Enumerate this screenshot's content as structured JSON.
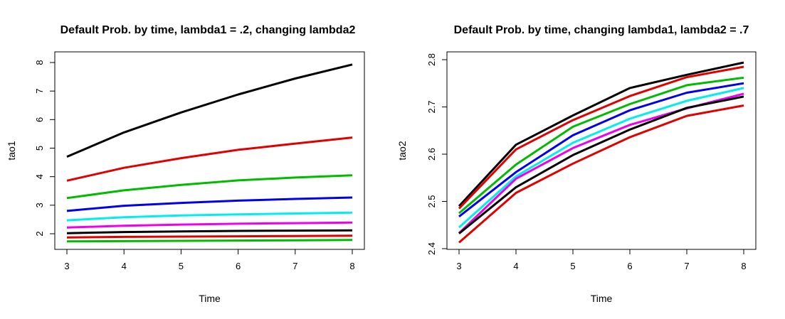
{
  "chart_data": [
    {
      "type": "line",
      "title": "Default Prob. by time, lambda1 = .2, changing lambda2",
      "xlabel": "Time",
      "ylabel": "tao1",
      "x": [
        3,
        4,
        5,
        6,
        7,
        8
      ],
      "xlim": [
        3,
        8
      ],
      "ylim": [
        1.7,
        8.0
      ],
      "xticks": [
        "3",
        "4",
        "5",
        "6",
        "7",
        "8"
      ],
      "yticks": [
        "2",
        "3",
        "4",
        "5",
        "6",
        "7",
        "8"
      ],
      "grid": false,
      "series": [
        {
          "color": "#000000",
          "values": [
            4.7,
            5.55,
            6.25,
            6.88,
            7.44,
            7.93
          ]
        },
        {
          "color": "#e00000",
          "values": [
            3.86,
            4.31,
            4.65,
            4.94,
            5.16,
            5.37
          ]
        },
        {
          "color": "#00bb00",
          "values": [
            3.25,
            3.52,
            3.71,
            3.87,
            3.97,
            4.05
          ]
        },
        {
          "color": "#0000ee",
          "values": [
            2.8,
            2.98,
            3.08,
            3.16,
            3.22,
            3.27
          ]
        },
        {
          "color": "#00eeee",
          "values": [
            2.47,
            2.58,
            2.64,
            2.68,
            2.71,
            2.74
          ]
        },
        {
          "color": "#ee00ee",
          "values": [
            2.22,
            2.28,
            2.32,
            2.35,
            2.37,
            2.39
          ]
        },
        {
          "color": "#000000",
          "values": [
            2.02,
            2.06,
            2.08,
            2.1,
            2.11,
            2.12
          ]
        },
        {
          "color": "#e00000",
          "values": [
            1.87,
            1.89,
            1.9,
            1.91,
            1.92,
            1.93
          ]
        },
        {
          "color": "#00bb00",
          "values": [
            1.73,
            1.74,
            1.75,
            1.76,
            1.77,
            1.78
          ]
        }
      ]
    },
    {
      "type": "line",
      "title": "Default Prob. by time, changing lambda1, lambda2 = .7",
      "xlabel": "Time",
      "ylabel": "tao2",
      "x": [
        3,
        4,
        5,
        6,
        7,
        8
      ],
      "xlim": [
        3,
        8
      ],
      "ylim": [
        2.4,
        2.8
      ],
      "xticks": [
        "3",
        "4",
        "5",
        "6",
        "7",
        "8"
      ],
      "yticks": [
        "2.4",
        "2.5",
        "2.6",
        "2.7",
        "2.8"
      ],
      "grid": false,
      "series": [
        {
          "color": "#000000",
          "values": [
            2.49,
            2.62,
            2.682,
            2.74,
            2.768,
            2.794
          ]
        },
        {
          "color": "#e00000",
          "values": [
            2.485,
            2.61,
            2.672,
            2.723,
            2.763,
            2.785
          ]
        },
        {
          "color": "#00bb00",
          "values": [
            2.475,
            2.578,
            2.658,
            2.706,
            2.746,
            2.762
          ]
        },
        {
          "color": "#0000ee",
          "values": [
            2.468,
            2.562,
            2.64,
            2.693,
            2.73,
            2.75
          ]
        },
        {
          "color": "#00eeee",
          "values": [
            2.445,
            2.553,
            2.624,
            2.675,
            2.713,
            2.74
          ]
        },
        {
          "color": "#ee00ee",
          "values": [
            2.433,
            2.548,
            2.613,
            2.662,
            2.697,
            2.728
          ]
        },
        {
          "color": "#000000",
          "values": [
            2.432,
            2.53,
            2.598,
            2.652,
            2.698,
            2.722
          ]
        },
        {
          "color": "#e00000",
          "values": [
            2.413,
            2.518,
            2.58,
            2.636,
            2.681,
            2.703
          ]
        }
      ]
    }
  ]
}
